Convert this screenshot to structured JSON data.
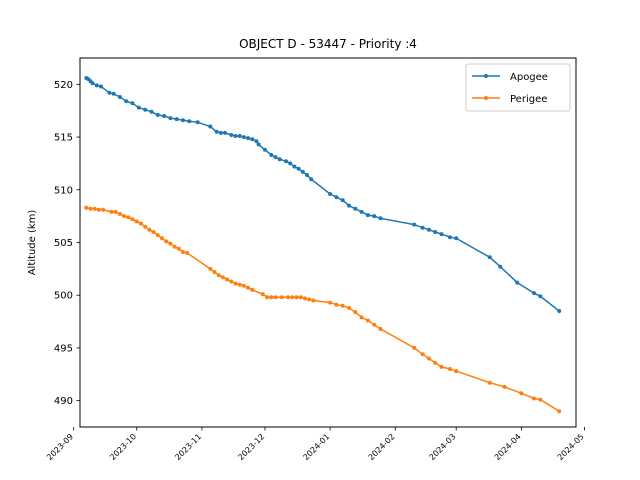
{
  "chart_data": {
    "type": "line",
    "title": "OBJECT D - 53447 - Priority :4",
    "xlabel": "",
    "ylabel": "Altitude (km)",
    "ylim": [
      487.5,
      522.5
    ],
    "xlim": [
      "2023-09-04",
      "2024-04-27"
    ],
    "yticks": [
      490,
      495,
      500,
      505,
      510,
      515,
      520
    ],
    "xticks": [
      "2023-09-01",
      "2023-10-01",
      "2023-11-01",
      "2023-12-01",
      "2024-01-01",
      "2024-02-01",
      "2024-03-01",
      "2024-04-01",
      "2024-05-01"
    ],
    "legend": {
      "position": "top-right"
    },
    "grid": false,
    "series": [
      {
        "name": "Apogee",
        "color": "#1f77b4",
        "points": [
          [
            "2023-09-07",
            520.6
          ],
          [
            "2023-09-08",
            520.5
          ],
          [
            "2023-09-09",
            520.3
          ],
          [
            "2023-09-10",
            520.1
          ],
          [
            "2023-09-12",
            519.9
          ],
          [
            "2023-09-14",
            519.8
          ],
          [
            "2023-09-18",
            519.2
          ],
          [
            "2023-09-20",
            519.1
          ],
          [
            "2023-09-23",
            518.8
          ],
          [
            "2023-09-26",
            518.4
          ],
          [
            "2023-09-29",
            518.2
          ],
          [
            "2023-10-02",
            517.8
          ],
          [
            "2023-10-05",
            517.6
          ],
          [
            "2023-10-08",
            517.4
          ],
          [
            "2023-10-11",
            517.1
          ],
          [
            "2023-10-14",
            517.0
          ],
          [
            "2023-10-17",
            516.8
          ],
          [
            "2023-10-20",
            516.7
          ],
          [
            "2023-10-23",
            516.6
          ],
          [
            "2023-10-26",
            516.5
          ],
          [
            "2023-10-30",
            516.4
          ],
          [
            "2023-11-05",
            516.0
          ],
          [
            "2023-11-08",
            515.5
          ],
          [
            "2023-11-10",
            515.4
          ],
          [
            "2023-11-12",
            515.4
          ],
          [
            "2023-11-15",
            515.2
          ],
          [
            "2023-11-17",
            515.1
          ],
          [
            "2023-11-19",
            515.1
          ],
          [
            "2023-11-21",
            515.0
          ],
          [
            "2023-11-23",
            514.9
          ],
          [
            "2023-11-25",
            514.8
          ],
          [
            "2023-11-27",
            514.6
          ],
          [
            "2023-11-28",
            514.3
          ],
          [
            "2023-12-01",
            513.8
          ],
          [
            "2023-12-04",
            513.3
          ],
          [
            "2023-12-06",
            513.1
          ],
          [
            "2023-12-08",
            512.9
          ],
          [
            "2023-12-11",
            512.7
          ],
          [
            "2023-12-13",
            512.5
          ],
          [
            "2023-12-15",
            512.2
          ],
          [
            "2023-12-17",
            512.0
          ],
          [
            "2023-12-19",
            511.7
          ],
          [
            "2023-12-21",
            511.4
          ],
          [
            "2023-12-23",
            511.0
          ],
          [
            "2024-01-01",
            509.6
          ],
          [
            "2024-01-04",
            509.3
          ],
          [
            "2024-01-07",
            509.0
          ],
          [
            "2024-01-10",
            508.5
          ],
          [
            "2024-01-13",
            508.2
          ],
          [
            "2024-01-16",
            507.9
          ],
          [
            "2024-01-19",
            507.6
          ],
          [
            "2024-01-22",
            507.5
          ],
          [
            "2024-01-25",
            507.3
          ],
          [
            "2024-02-10",
            506.7
          ],
          [
            "2024-02-14",
            506.4
          ],
          [
            "2024-02-17",
            506.2
          ],
          [
            "2024-02-20",
            506.0
          ],
          [
            "2024-02-23",
            505.8
          ],
          [
            "2024-02-27",
            505.5
          ],
          [
            "2024-03-01",
            505.4
          ],
          [
            "2024-03-17",
            503.6
          ],
          [
            "2024-03-22",
            502.7
          ],
          [
            "2024-03-30",
            501.2
          ],
          [
            "2024-04-07",
            500.2
          ],
          [
            "2024-04-10",
            499.9
          ],
          [
            "2024-04-19",
            498.5
          ]
        ]
      },
      {
        "name": "Perigee",
        "color": "#ff7f0e",
        "points": [
          [
            "2023-09-07",
            508.3
          ],
          [
            "2023-09-09",
            508.2
          ],
          [
            "2023-09-11",
            508.2
          ],
          [
            "2023-09-13",
            508.1
          ],
          [
            "2023-09-15",
            508.1
          ],
          [
            "2023-09-19",
            507.9
          ],
          [
            "2023-09-21",
            507.9
          ],
          [
            "2023-09-23",
            507.7
          ],
          [
            "2023-09-25",
            507.5
          ],
          [
            "2023-09-27",
            507.4
          ],
          [
            "2023-09-29",
            507.2
          ],
          [
            "2023-10-01",
            507.0
          ],
          [
            "2023-10-03",
            506.8
          ],
          [
            "2023-10-05",
            506.5
          ],
          [
            "2023-10-07",
            506.2
          ],
          [
            "2023-10-09",
            506.0
          ],
          [
            "2023-10-11",
            505.7
          ],
          [
            "2023-10-13",
            505.4
          ],
          [
            "2023-10-15",
            505.1
          ],
          [
            "2023-10-17",
            504.9
          ],
          [
            "2023-10-19",
            504.6
          ],
          [
            "2023-10-21",
            504.4
          ],
          [
            "2023-10-23",
            504.1
          ],
          [
            "2023-10-25",
            504.0
          ],
          [
            "2023-11-05",
            502.5
          ],
          [
            "2023-11-07",
            502.2
          ],
          [
            "2023-11-09",
            501.9
          ],
          [
            "2023-11-11",
            501.7
          ],
          [
            "2023-11-13",
            501.5
          ],
          [
            "2023-11-15",
            501.3
          ],
          [
            "2023-11-17",
            501.1
          ],
          [
            "2023-11-19",
            501.0
          ],
          [
            "2023-11-21",
            500.9
          ],
          [
            "2023-11-23",
            500.7
          ],
          [
            "2023-11-25",
            500.5
          ],
          [
            "2023-11-30",
            500.1
          ],
          [
            "2023-12-02",
            499.8
          ],
          [
            "2023-12-04",
            499.8
          ],
          [
            "2023-12-06",
            499.8
          ],
          [
            "2023-12-09",
            499.8
          ],
          [
            "2023-12-12",
            499.8
          ],
          [
            "2023-12-14",
            499.8
          ],
          [
            "2023-12-16",
            499.8
          ],
          [
            "2023-12-18",
            499.8
          ],
          [
            "2023-12-20",
            499.7
          ],
          [
            "2023-12-22",
            499.6
          ],
          [
            "2023-12-24",
            499.5
          ],
          [
            "2024-01-01",
            499.3
          ],
          [
            "2024-01-04",
            499.1
          ],
          [
            "2024-01-07",
            499.0
          ],
          [
            "2024-01-10",
            498.8
          ],
          [
            "2024-01-13",
            498.4
          ],
          [
            "2024-01-16",
            497.9
          ],
          [
            "2024-01-19",
            497.6
          ],
          [
            "2024-01-22",
            497.2
          ],
          [
            "2024-01-25",
            496.8
          ],
          [
            "2024-02-10",
            495.0
          ],
          [
            "2024-02-14",
            494.4
          ],
          [
            "2024-02-17",
            494.0
          ],
          [
            "2024-02-20",
            493.6
          ],
          [
            "2024-02-23",
            493.2
          ],
          [
            "2024-02-27",
            493.0
          ],
          [
            "2024-03-01",
            492.8
          ],
          [
            "2024-03-17",
            491.7
          ],
          [
            "2024-03-24",
            491.3
          ],
          [
            "2024-04-01",
            490.7
          ],
          [
            "2024-04-07",
            490.2
          ],
          [
            "2024-04-10",
            490.1
          ],
          [
            "2024-04-19",
            489.0
          ]
        ]
      }
    ]
  }
}
